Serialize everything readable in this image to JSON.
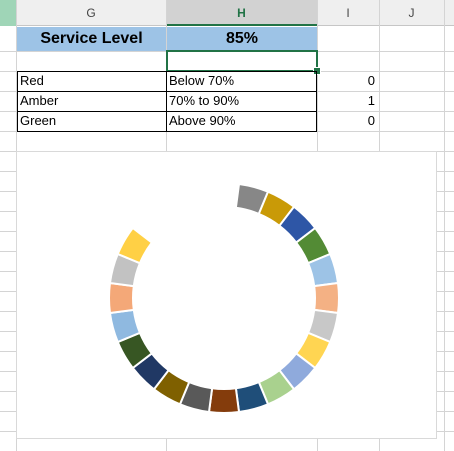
{
  "columns": [
    "G",
    "H",
    "I",
    "J"
  ],
  "service_level": {
    "label": "Service Level",
    "value": "85%"
  },
  "rag_table": [
    {
      "status": "Red",
      "range": "Below 70%",
      "flag": "0"
    },
    {
      "status": "Amber",
      "range": "70% to 90%",
      "flag": "1"
    },
    {
      "status": "Green",
      "range": "Above 90%",
      "flag": "0"
    }
  ],
  "chart_data": {
    "type": "pie",
    "style": "doughnut",
    "segments": 24,
    "values": [
      1,
      1,
      1,
      1,
      1,
      1,
      1,
      1,
      1,
      1,
      1,
      1,
      1,
      1,
      1,
      1,
      1,
      1,
      1,
      1,
      1,
      1,
      1,
      1
    ],
    "colors": [
      "#878787",
      "#c99a07",
      "#2e56a6",
      "#538b35",
      "#9dc3e6",
      "#f4b184",
      "#c8c8c8",
      "#ffd552",
      "#8faadc",
      "#a9d18e",
      "#1f4e79",
      "#843c0c",
      "#595959",
      "#7f6000",
      "#203864",
      "#375623",
      "#8fb9e0",
      "#f4a878",
      "#c2c2c2",
      "#ffd045"
    ]
  }
}
